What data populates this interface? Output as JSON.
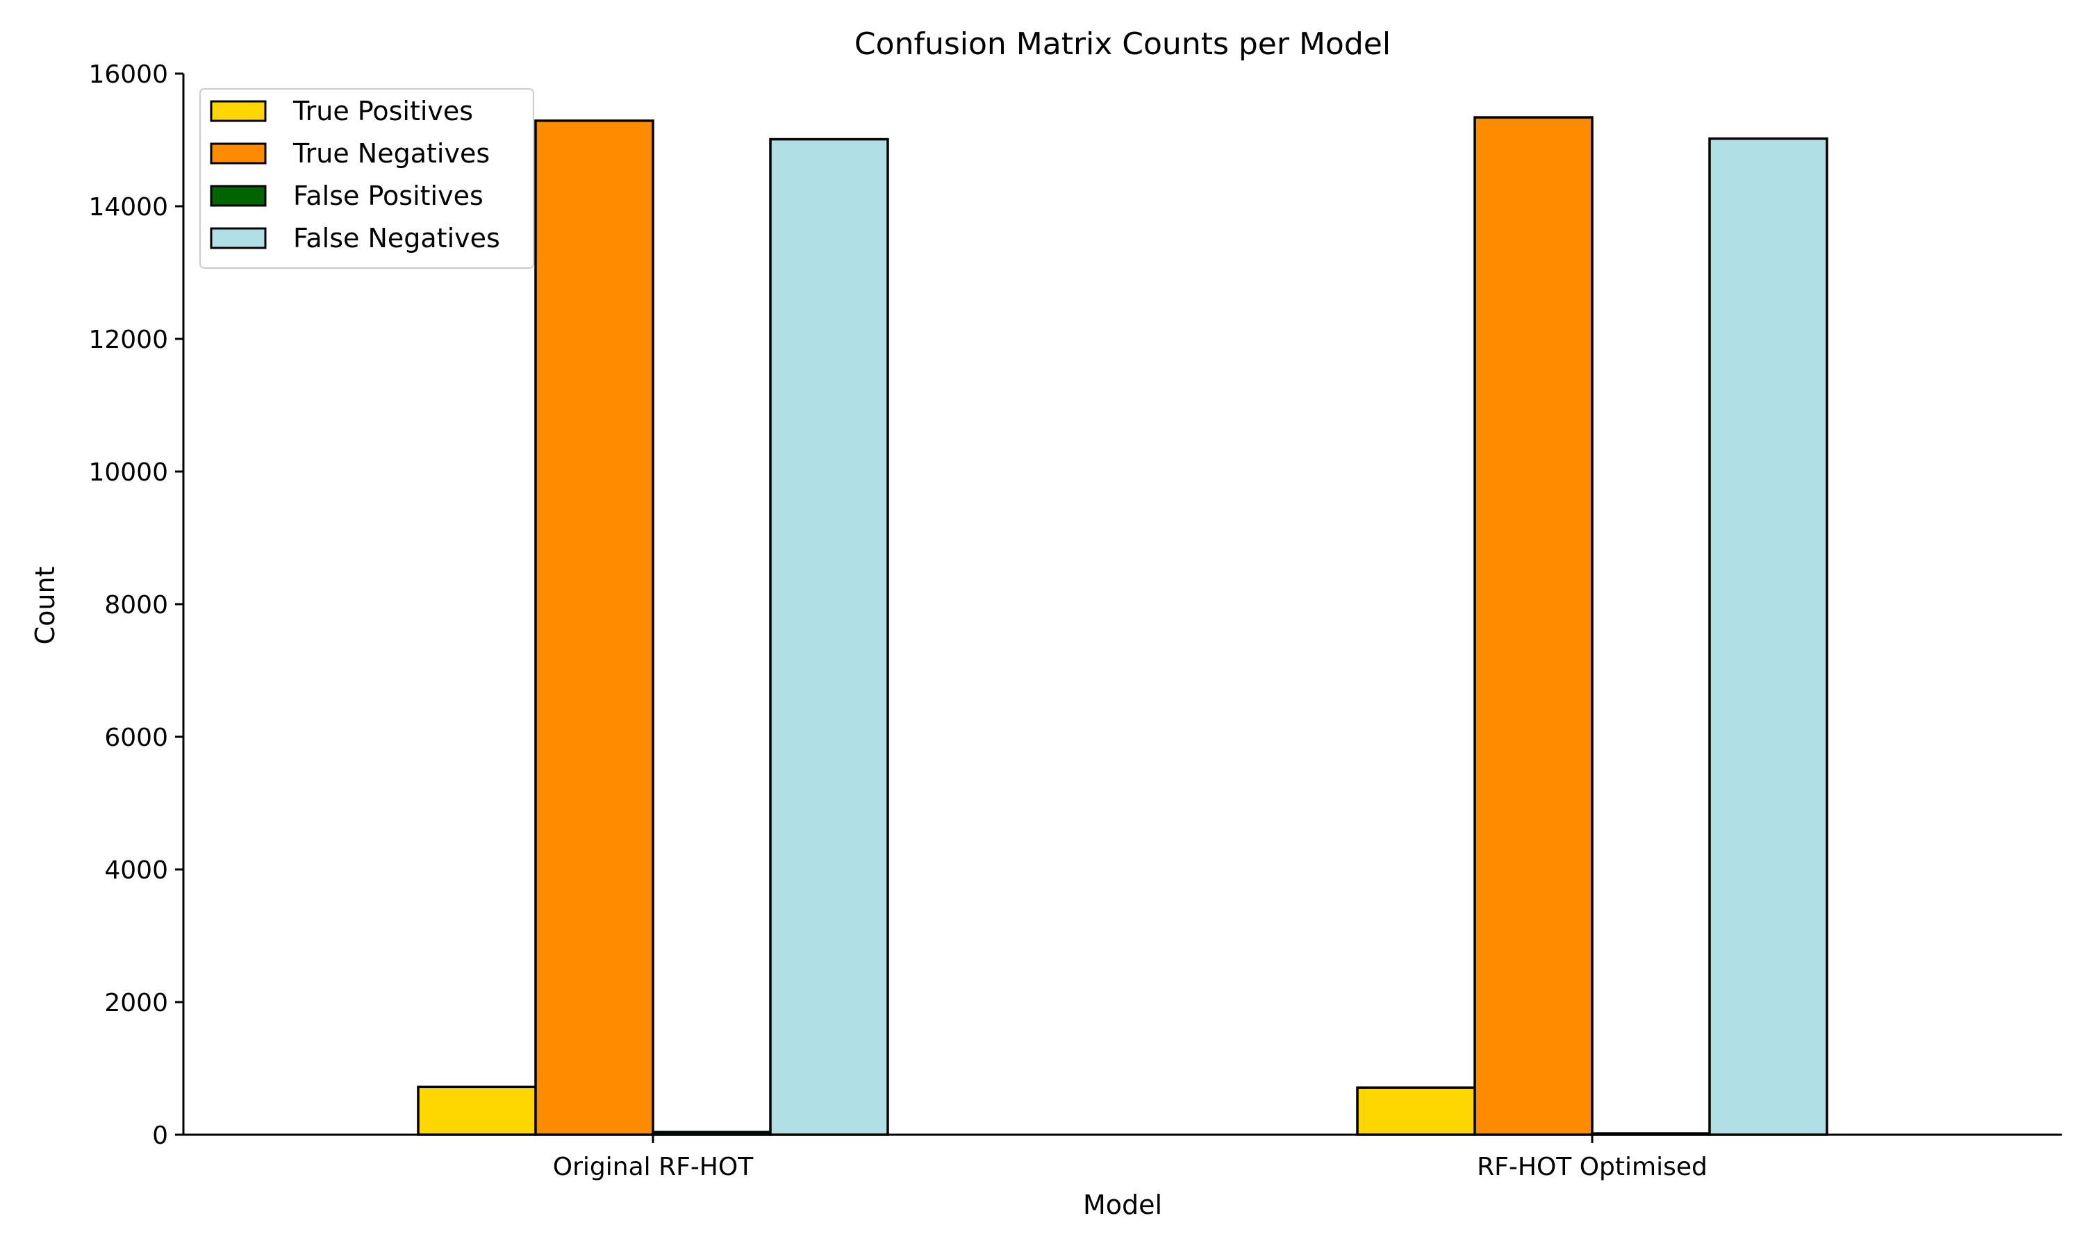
{
  "chart_data": {
    "type": "bar",
    "title": "Confusion Matrix Counts per Model",
    "xlabel": "Model",
    "ylabel": "Count",
    "categories": [
      "Original RF-HOT",
      "RF-HOT Optimised"
    ],
    "series": [
      {
        "name": "True Positives",
        "color": "#FFD700",
        "values": [
          720,
          710
        ]
      },
      {
        "name": "True Negatives",
        "color": "#FF8C00",
        "values": [
          15290,
          15340
        ]
      },
      {
        "name": "False Positives",
        "color": "#006400",
        "values": [
          40,
          20
        ]
      },
      {
        "name": "False Negatives",
        "color": "#B0E0E6",
        "values": [
          15010,
          15020
        ]
      }
    ],
    "ylim": [
      0,
      16000
    ],
    "yticks": [
      0,
      2000,
      4000,
      6000,
      8000,
      10000,
      12000,
      14000,
      16000
    ],
    "ytick_labels": [
      "0",
      "2000",
      "4000",
      "6000",
      "8000",
      "10000",
      "12000",
      "14000",
      "16000"
    ],
    "grid": false,
    "legend_position": "top-left"
  }
}
